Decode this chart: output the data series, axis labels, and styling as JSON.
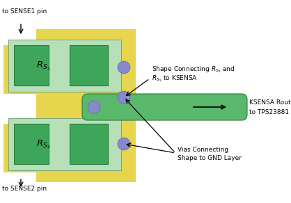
{
  "yellow": "#e8d54e",
  "light_green": "#b8e0b8",
  "dark_green": "#3da65a",
  "dark_green_edge": "#2d7a3a",
  "ksensa_green": "#5ab86c",
  "via_purple": "#8888cc",
  "white_bg": "#ffffff",
  "label_sense1": "to SENSE1 pin",
  "label_sense2": "to SENSE2 pin",
  "label_shape_l1": "Shape Connecting $R_{S_1}$ and",
  "label_shape_l2": "$R_{S_2}$ to KSENSA",
  "label_ksensa_l1": "KSENSA Route",
  "label_ksensa_l2": "to TPS23881",
  "label_vias_l1": "Vias Connecting",
  "label_vias_l2": "Shape to GND Layer"
}
